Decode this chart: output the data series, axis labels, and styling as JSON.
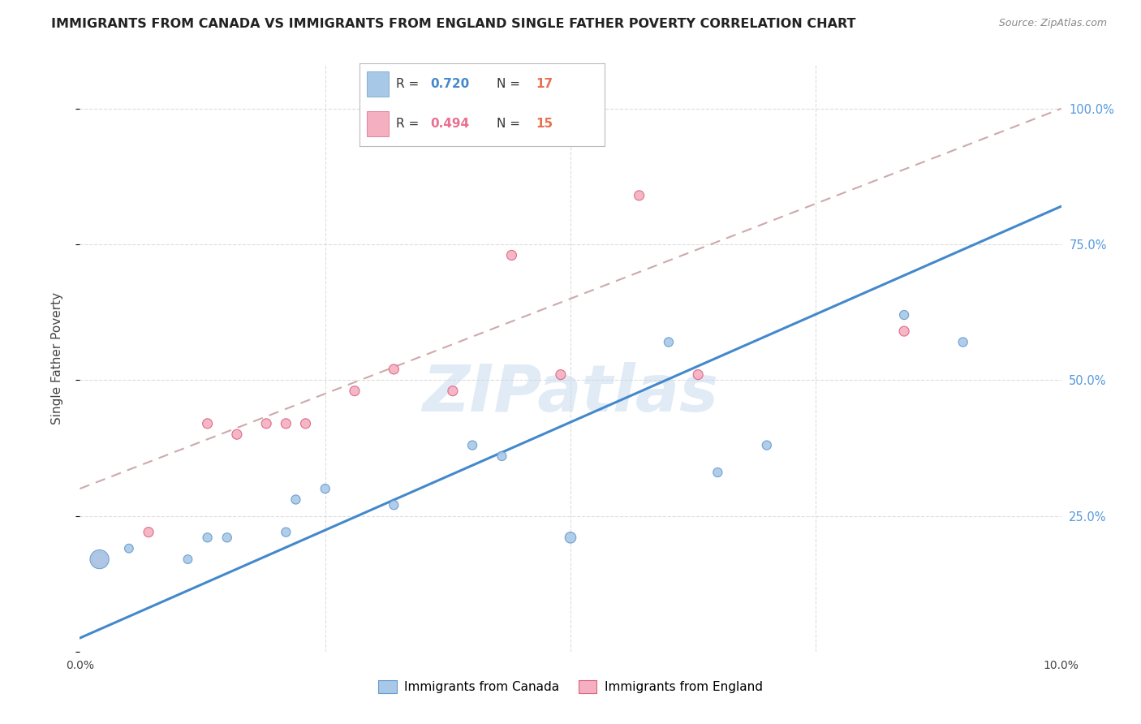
{
  "title": "IMMIGRANTS FROM CANADA VS IMMIGRANTS FROM ENGLAND SINGLE FATHER POVERTY CORRELATION CHART",
  "source": "Source: ZipAtlas.com",
  "ylabel": "Single Father Poverty",
  "xlim": [
    0.0,
    0.1
  ],
  "ylim": [
    0.0,
    1.08
  ],
  "canada_R": "0.720",
  "canada_N": "17",
  "england_R": "0.494",
  "england_N": "15",
  "canada_color": "#a8c8e8",
  "england_color": "#f4b0c0",
  "canada_line_color": "#4488cc",
  "england_line_color": "#e87090",
  "canada_dot_edge": "#6699cc",
  "england_dot_edge": "#dd6080",
  "canada_x": [
    0.002,
    0.005,
    0.011,
    0.013,
    0.015,
    0.021,
    0.022,
    0.025,
    0.032,
    0.04,
    0.043,
    0.05,
    0.06,
    0.065,
    0.07,
    0.084,
    0.09
  ],
  "canada_y": [
    0.17,
    0.19,
    0.17,
    0.21,
    0.21,
    0.22,
    0.28,
    0.3,
    0.27,
    0.38,
    0.36,
    0.21,
    0.57,
    0.33,
    0.38,
    0.62,
    0.57
  ],
  "canada_size": [
    280,
    60,
    60,
    65,
    65,
    65,
    65,
    65,
    65,
    65,
    65,
    95,
    65,
    65,
    65,
    65,
    65
  ],
  "england_x": [
    0.002,
    0.007,
    0.013,
    0.016,
    0.019,
    0.021,
    0.023,
    0.028,
    0.032,
    0.038,
    0.044,
    0.049,
    0.057,
    0.063,
    0.084
  ],
  "england_y": [
    0.17,
    0.22,
    0.42,
    0.4,
    0.42,
    0.42,
    0.42,
    0.48,
    0.52,
    0.48,
    0.73,
    0.51,
    0.84,
    0.51,
    0.59
  ],
  "england_size": [
    180,
    75,
    75,
    75,
    75,
    75,
    75,
    75,
    75,
    75,
    75,
    75,
    75,
    75,
    75
  ],
  "canada_trend_x": [
    0.0,
    0.1
  ],
  "canada_trend_y": [
    0.025,
    0.82
  ],
  "england_trend_x": [
    0.0,
    0.1
  ],
  "england_trend_y": [
    0.3,
    1.0
  ],
  "ytick_values": [
    0.0,
    0.25,
    0.5,
    0.75,
    1.0
  ],
  "ytick_labels_right": [
    "",
    "25.0%",
    "50.0%",
    "75.0%",
    "100.0%"
  ],
  "ytick_color": "#5599dd",
  "xtick_values": [
    0.0,
    0.025,
    0.05,
    0.075,
    0.1
  ],
  "xtick_labels": [
    "0.0%",
    "",
    "",
    "",
    "10.0%"
  ],
  "watermark": "ZIPatlas",
  "watermark_color": "#c5d8ec",
  "watermark_alpha": 0.5,
  "grid_color": "#dddddd",
  "background_color": "#ffffff",
  "legend_labels": [
    "Immigrants from Canada",
    "Immigrants from England"
  ]
}
